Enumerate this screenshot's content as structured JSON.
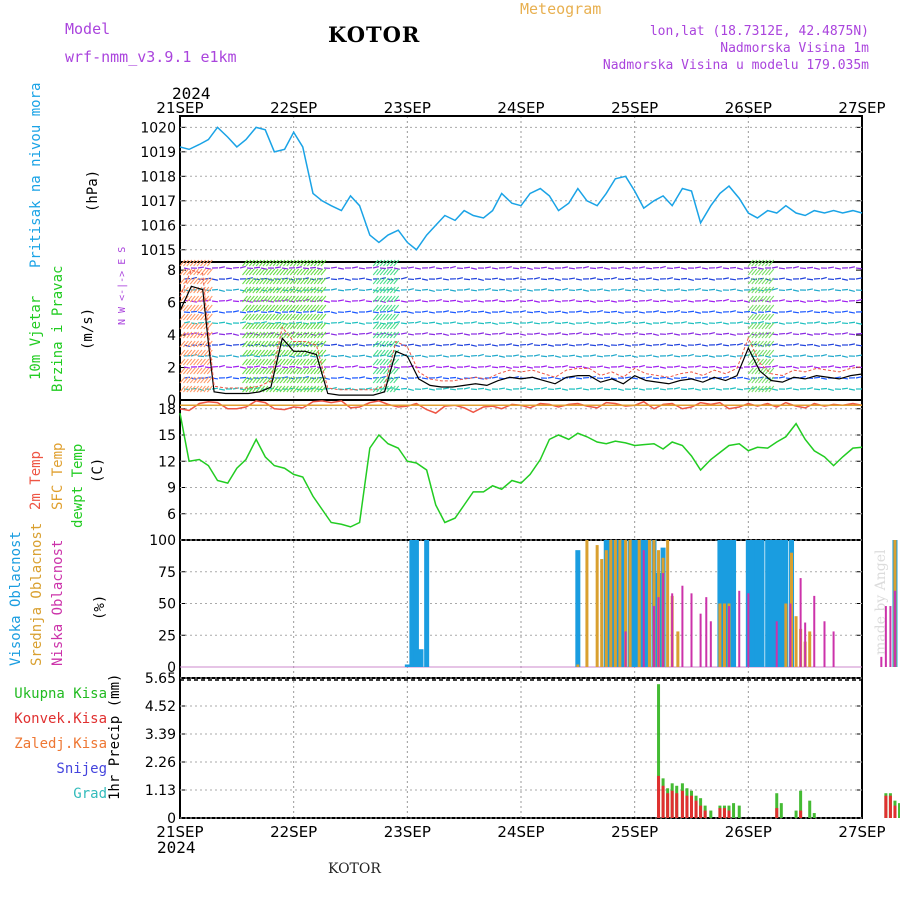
{
  "header": {
    "model_label": "Model",
    "model_name": "wrf-nmm_v3.9.1 e1km",
    "station": "KOTOR",
    "product": "Meteogram",
    "lonlat": "lon,lat (18.7312E, 42.4875N)",
    "elevation": "Nadmorska Visina 1m",
    "model_elevation": "Nadmorska Visina u modelu 179.035m",
    "year_top": "2024",
    "year_bottom": "2024",
    "footer_station": "KOTOR",
    "watermark": "made by Angel"
  },
  "colors": {
    "pressure": "#1aa3e6",
    "temp2m": "#ee5544",
    "sfc": "#e0a030",
    "dewpt": "#22cc22",
    "high_cloud": "#1a9de0",
    "mid_cloud": "#d9a030",
    "low_cloud": "#cc33aa",
    "total_precip": "#44bb33",
    "conv_precip": "#e03030",
    "frozen": "#ee7733",
    "snow": "#4444dd",
    "graupel": "#33bbbb",
    "model_label": "#aa44dd",
    "product_label": "#e8b050"
  },
  "chart_data": [
    {
      "type": "line",
      "panel": "pressure",
      "title": "Pritisak na nivou mora",
      "ylabel": "(hPa)",
      "ylim": [
        1014.5,
        1020.3
      ],
      "yticks": [
        1015,
        1016,
        1017,
        1018,
        1019,
        1020
      ],
      "x_days": [
        "21SEP",
        "22SEP",
        "23SEP",
        "24SEP",
        "25SEP",
        "26SEP",
        "27SEP"
      ],
      "x": [
        0,
        0.08,
        0.17,
        0.25,
        0.33,
        0.42,
        0.5,
        0.58,
        0.67,
        0.75,
        0.83,
        0.92,
        1.0,
        1.08,
        1.17,
        1.25,
        1.33,
        1.42,
        1.5,
        1.58,
        1.67,
        1.75,
        1.83,
        1.92,
        2.0,
        2.08,
        2.17,
        2.25,
        2.33,
        2.42,
        2.5,
        2.58,
        2.67,
        2.75,
        2.83,
        2.92,
        3.0,
        3.08,
        3.17,
        3.25,
        3.33,
        3.42,
        3.5,
        3.58,
        3.67,
        3.75,
        3.83,
        3.92,
        4.0,
        4.08,
        4.17,
        4.25,
        4.33,
        4.42,
        4.5,
        4.58,
        4.67,
        4.75,
        4.83,
        4.92,
        5.0,
        5.08,
        5.17,
        5.25,
        5.33,
        5.42,
        5.5,
        5.58,
        5.67,
        5.75,
        5.83,
        5.92,
        6.0
      ],
      "values": [
        1019.2,
        1019.1,
        1019.3,
        1019.5,
        1020.0,
        1019.6,
        1019.2,
        1019.5,
        1020.0,
        1019.9,
        1019.0,
        1019.1,
        1019.8,
        1019.2,
        1017.3,
        1017.0,
        1016.8,
        1016.6,
        1017.2,
        1016.8,
        1015.6,
        1015.3,
        1015.6,
        1015.8,
        1015.3,
        1015.0,
        1015.6,
        1016.0,
        1016.4,
        1016.2,
        1016.6,
        1016.4,
        1016.3,
        1016.6,
        1017.3,
        1016.9,
        1016.8,
        1017.3,
        1017.5,
        1017.2,
        1016.6,
        1016.9,
        1017.5,
        1017.0,
        1016.8,
        1017.3,
        1017.9,
        1018.0,
        1017.4,
        1016.7,
        1017.0,
        1017.2,
        1016.8,
        1017.5,
        1017.4,
        1016.1,
        1016.8,
        1017.3,
        1017.6,
        1017.1,
        1016.5,
        1016.3,
        1016.6,
        1016.5,
        1016.8,
        1016.5,
        1016.4,
        1016.6,
        1016.5,
        1016.6,
        1016.5,
        1016.6,
        1016.5
      ]
    },
    {
      "type": "line",
      "panel": "wind",
      "title": "10m Vjetar Brzina i Pravac",
      "ylabel": "(m/s)",
      "ylim": [
        0,
        8.5
      ],
      "yticks": [
        0,
        2,
        4,
        6,
        8
      ],
      "compass": "N  W <-|-> E  S",
      "x": [
        0,
        0.1,
        0.2,
        0.25,
        0.3,
        0.4,
        0.5,
        0.6,
        0.7,
        0.8,
        0.9,
        1.0,
        1.1,
        1.2,
        1.3,
        1.4,
        1.5,
        1.6,
        1.7,
        1.8,
        1.9,
        2.0,
        2.1,
        2.2,
        2.3,
        2.4,
        2.5,
        2.6,
        2.7,
        2.8,
        2.9,
        3.0,
        3.1,
        3.2,
        3.3,
        3.4,
        3.5,
        3.6,
        3.7,
        3.8,
        3.9,
        4.0,
        4.1,
        4.2,
        4.3,
        4.4,
        4.5,
        4.6,
        4.7,
        4.8,
        4.9,
        5.0,
        5.1,
        5.2,
        5.3,
        5.4,
        5.5,
        5.6,
        5.7,
        5.8,
        5.9,
        6.0
      ],
      "values": [
        5.5,
        7.0,
        6.8,
        3.5,
        0.5,
        0.4,
        0.4,
        0.4,
        0.5,
        0.8,
        3.8,
        3.0,
        3.0,
        2.8,
        0.4,
        0.3,
        0.3,
        0.3,
        0.3,
        0.5,
        3.0,
        2.7,
        1.3,
        0.9,
        0.8,
        0.8,
        0.9,
        1.0,
        0.9,
        1.2,
        1.4,
        1.3,
        1.4,
        1.2,
        1.0,
        1.4,
        1.5,
        1.5,
        1.1,
        1.3,
        1.0,
        1.5,
        1.2,
        1.1,
        1.0,
        1.2,
        1.3,
        1.1,
        1.4,
        1.2,
        1.5,
        3.2,
        1.8,
        1.2,
        1.1,
        1.4,
        1.3,
        1.5,
        1.4,
        1.3,
        1.5,
        1.6
      ]
    },
    {
      "type": "line",
      "panel": "temperature",
      "ylabel": "(C)",
      "ylim": [
        3.0,
        19.0
      ],
      "yticks": [
        6,
        9,
        12,
        15,
        18
      ],
      "series_labels": [
        "2m Temp",
        "SFC Temp",
        "dewpt Temp"
      ],
      "x": [
        0,
        0.08,
        0.17,
        0.25,
        0.33,
        0.42,
        0.5,
        0.58,
        0.67,
        0.75,
        0.83,
        0.92,
        1.0,
        1.08,
        1.17,
        1.25,
        1.33,
        1.42,
        1.5,
        1.58,
        1.67,
        1.75,
        1.83,
        1.92,
        2.0,
        2.08,
        2.17,
        2.25,
        2.33,
        2.42,
        2.5,
        2.58,
        2.67,
        2.75,
        2.83,
        2.92,
        3.0,
        3.08,
        3.17,
        3.25,
        3.33,
        3.42,
        3.5,
        3.58,
        3.67,
        3.75,
        3.83,
        3.92,
        4.0,
        4.08,
        4.17,
        4.25,
        4.33,
        4.42,
        4.5,
        4.58,
        4.67,
        4.75,
        4.83,
        4.92,
        5.0,
        5.08,
        5.17,
        5.25,
        5.33,
        5.42,
        5.5,
        5.58,
        5.67,
        5.75,
        5.83,
        5.92,
        6.0
      ],
      "series": [
        {
          "key": "temp2m",
          "values": [
            18.0,
            17.8,
            18.6,
            18.8,
            18.7,
            18.0,
            18.0,
            18.2,
            18.9,
            18.7,
            18.0,
            17.9,
            18.2,
            18.1,
            18.8,
            18.9,
            18.7,
            18.9,
            18.1,
            18.2,
            18.7,
            18.9,
            18.5,
            18.2,
            18.3,
            18.6,
            17.9,
            17.5,
            18.3,
            18.4,
            18.1,
            17.6,
            18.2,
            18.3,
            18.0,
            18.5,
            18.4,
            18.1,
            18.6,
            18.5,
            18.2,
            18.5,
            18.6,
            18.3,
            18.1,
            18.7,
            18.6,
            18.3,
            18.4,
            18.8,
            18.0,
            18.5,
            18.6,
            18.0,
            18.2,
            18.7,
            18.5,
            18.7,
            18.0,
            18.2,
            18.6,
            18.3,
            18.6,
            18.2,
            18.7,
            18.3,
            18.1,
            18.6,
            18.3,
            18.5,
            18.4,
            18.6,
            18.4
          ]
        },
        {
          "key": "sfc",
          "values": [
            18.4,
            18.4,
            18.4,
            18.4,
            18.4,
            18.4,
            18.4,
            18.4,
            18.4,
            18.4,
            18.4,
            18.4,
            18.4,
            18.4,
            18.4,
            18.4,
            18.4,
            18.4,
            18.4,
            18.4,
            18.4,
            18.4,
            18.4,
            18.4,
            18.4,
            18.4,
            18.4,
            18.4,
            18.4,
            18.4,
            18.4,
            18.4,
            18.4,
            18.4,
            18.4,
            18.4,
            18.4,
            18.4,
            18.4,
            18.4,
            18.4,
            18.4,
            18.4,
            18.4,
            18.4,
            18.4,
            18.4,
            18.4,
            18.4,
            18.4,
            18.4,
            18.4,
            18.4,
            18.4,
            18.4,
            18.4,
            18.4,
            18.4,
            18.4,
            18.4,
            18.4,
            18.4,
            18.4,
            18.4,
            18.4,
            18.4,
            18.4,
            18.4,
            18.4,
            18.4,
            18.4,
            18.4,
            18.4
          ]
        },
        {
          "key": "dewpt",
          "values": [
            17.5,
            12.0,
            12.2,
            11.5,
            9.8,
            9.5,
            11.2,
            12.2,
            14.5,
            12.5,
            11.5,
            11.2,
            10.5,
            10.2,
            8.0,
            6.5,
            5.0,
            4.8,
            4.5,
            5.0,
            13.5,
            15.0,
            14.0,
            13.5,
            12.0,
            11.8,
            11.0,
            7.0,
            5.0,
            5.5,
            7.0,
            8.5,
            8.5,
            9.2,
            8.8,
            9.8,
            9.5,
            10.5,
            12.2,
            14.5,
            15.0,
            14.5,
            15.2,
            14.8,
            14.2,
            14.0,
            14.3,
            14.1,
            13.8,
            13.9,
            14.0,
            13.4,
            14.2,
            13.8,
            12.6,
            11.0,
            12.2,
            13.0,
            13.8,
            14.0,
            13.2,
            13.6,
            13.5,
            14.2,
            14.8,
            16.3,
            14.5,
            13.2,
            12.5,
            11.5,
            12.5,
            13.5,
            13.6
          ]
        }
      ]
    },
    {
      "type": "bar",
      "panel": "clouds",
      "ylabel": "(%)",
      "ylim": [
        0,
        100
      ],
      "yticks": [
        0,
        25,
        50,
        75,
        100
      ],
      "series_labels": [
        "Visoka Oblacnost",
        "Srednja Oblacnost",
        "Niska Oblacnost"
      ],
      "series": [
        {
          "key": "high",
          "x": [
            2.0,
            2.04,
            2.08,
            2.12,
            2.17,
            3.5,
            3.75,
            3.79,
            3.83,
            3.87,
            3.91,
            3.96,
            4.0,
            4.04,
            4.08,
            4.12,
            4.17,
            4.21,
            4.25,
            4.75,
            4.79,
            4.83,
            4.87,
            5.0,
            5.04,
            5.08,
            5.12,
            5.17,
            5.21,
            5.25,
            5.29,
            5.33,
            5.38,
            6.29,
            6.37,
            6.42,
            6.46
          ],
          "values": [
            2,
            100,
            100,
            14,
            100,
            92,
            100,
            100,
            100,
            100,
            100,
            100,
            100,
            100,
            100,
            100,
            100,
            74,
            94,
            100,
            100,
            100,
            100,
            100,
            100,
            100,
            100,
            100,
            100,
            100,
            100,
            100,
            100,
            100,
            100,
            100,
            40
          ]
        },
        {
          "key": "mid",
          "x": [
            3.5,
            3.58,
            3.67,
            3.71,
            3.75,
            3.79,
            3.83,
            3.87,
            3.92,
            3.96,
            4.04,
            4.13,
            4.17,
            4.21,
            4.25,
            4.29,
            4.33,
            4.38,
            4.75,
            4.79,
            4.83,
            5.33,
            5.38,
            5.42,
            5.46,
            5.5,
            5.54,
            6.29,
            6.37
          ],
          "values": [
            2,
            100,
            96,
            85,
            92,
            100,
            100,
            100,
            100,
            100,
            100,
            100,
            100,
            92,
            86,
            100,
            56,
            28,
            50,
            50,
            50,
            50,
            90,
            40,
            30,
            20,
            28,
            100,
            100
          ]
        },
        {
          "key": "low",
          "x": [
            3.92,
            4.08,
            4.17,
            4.21,
            4.25,
            4.33,
            4.42,
            4.5,
            4.58,
            4.63,
            4.67,
            4.83,
            4.92,
            5.0,
            5.25,
            5.37,
            5.46,
            5.5,
            5.58,
            5.67,
            5.75,
            6.17,
            6.21,
            6.25,
            6.29,
            6.37,
            6.42,
            6.46,
            6.5,
            6.94
          ],
          "values": [
            28,
            92,
            48,
            55,
            74,
            58,
            64,
            58,
            42,
            55,
            36,
            48,
            60,
            58,
            36,
            50,
            70,
            35,
            56,
            36,
            28,
            8,
            48,
            48,
            60,
            88,
            82,
            38,
            96,
            28
          ]
        }
      ]
    },
    {
      "type": "bar",
      "panel": "precipitation",
      "ylabel": "1hr Precip (mm)",
      "ylim": [
        0,
        5.65
      ],
      "yticks": [
        0,
        1.13,
        2.26,
        3.39,
        4.52,
        5.65
      ],
      "series_labels": [
        "Ukupna Kisa",
        "Konvek.Kisa",
        "Zaledj.Kisa",
        "Snijeg",
        "Grad"
      ],
      "series": [
        {
          "key": "total",
          "x": [
            4.21,
            4.25,
            4.29,
            4.33,
            4.37,
            4.42,
            4.46,
            4.5,
            4.54,
            4.58,
            4.62,
            4.67,
            4.75,
            4.79,
            4.83,
            4.87,
            4.92,
            5.25,
            5.29,
            5.42,
            5.46,
            5.54,
            5.58,
            6.21,
            6.25,
            6.29,
            6.33,
            6.37,
            6.42,
            6.46,
            6.5,
            6.54
          ],
          "values": [
            5.4,
            1.6,
            1.2,
            1.4,
            1.3,
            1.4,
            1.2,
            1.1,
            0.9,
            0.8,
            0.5,
            0.3,
            0.5,
            0.5,
            0.5,
            0.6,
            0.5,
            1.0,
            0.6,
            0.3,
            1.1,
            0.7,
            0.2,
            1.0,
            1.0,
            0.7,
            0.6,
            0.4,
            0.7,
            0.9,
            0.4,
            0.3
          ]
        },
        {
          "key": "convective",
          "x": [
            4.21,
            4.25,
            4.29,
            4.33,
            4.37,
            4.42,
            4.46,
            4.5,
            4.54,
            4.58,
            4.62,
            4.75,
            4.79,
            4.83,
            5.25,
            5.46,
            6.21,
            6.25,
            6.29,
            6.42
          ],
          "values": [
            1.7,
            1.3,
            1.0,
            1.1,
            1.0,
            1.1,
            0.9,
            0.9,
            0.7,
            0.5,
            0.3,
            0.4,
            0.4,
            0.3,
            0.4,
            0.3,
            0.9,
            0.9,
            0.5,
            0.5
          ]
        }
      ]
    }
  ]
}
